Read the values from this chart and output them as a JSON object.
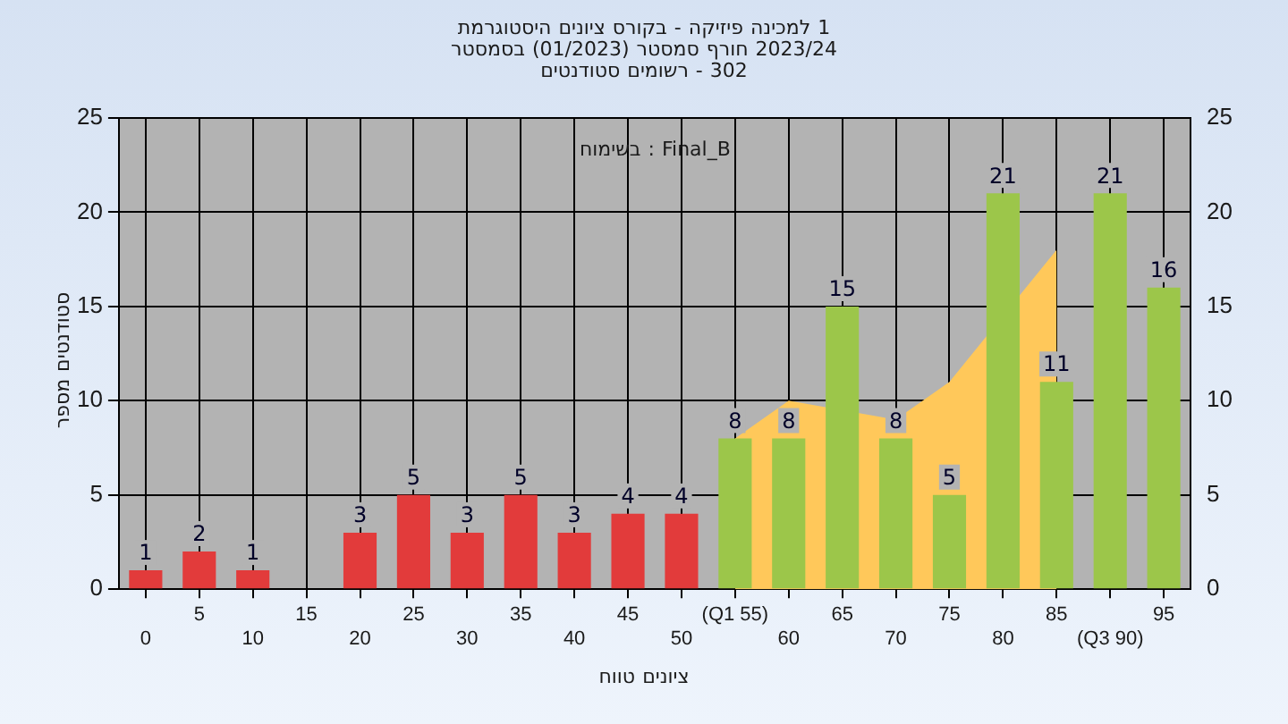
{
  "chart_data": {
    "type": "bar",
    "title": "היסטוגרמת ציונים בקורס - פיזיקה למכינה 1",
    "subtitle": "בסמסטר (01/2023) סמסטר חורף 2023/24\nסטודנטים רשומים - 302",
    "xlabel": "טווח ציונים",
    "ylabel": "מספר סטודנטים",
    "annotations": [
      "בשימוח : Final_B"
    ],
    "categories": [
      "0",
      "5",
      "10",
      "15",
      "20",
      "25",
      "30",
      "35",
      "40",
      "45",
      "50",
      "(Q1 55)",
      "60",
      "65",
      "70",
      "75",
      "80",
      "85",
      "(Q3 90)",
      "95"
    ],
    "series": [
      {
        "colors": [
          "#e23b3b",
          "#e23b3b",
          "#e23b3b",
          "#e23b3b",
          "#e23b3b",
          "#e23b3b",
          "#e23b3b",
          "#e23b3b",
          "#e23b3b",
          "#e23b3b",
          "#e23b3b",
          "#9cc64a",
          "#9cc64a",
          "#9cc64a",
          "#9cc64a",
          "#9cc64a",
          "#9cc64a",
          "#9cc64a",
          "#9cc64a",
          "#9cc64a"
        ],
        "values": [
          1,
          2,
          1,
          0,
          3,
          5,
          3,
          5,
          3,
          4,
          4,
          8,
          8,
          15,
          8,
          5,
          21,
          11,
          21,
          16
        ],
        "value_labels": [
          "1",
          "2",
          "1",
          null,
          "3",
          "5",
          "3",
          "5",
          "3",
          "4",
          "4",
          "8",
          "8",
          "15",
          "8",
          "5",
          "21",
          "11",
          "21",
          "16"
        ]
      },
      {
        "type": "area",
        "color": "#ffc85a",
        "values": [
          null,
          null,
          null,
          null,
          null,
          null,
          null,
          null,
          null,
          null,
          null,
          8,
          10,
          null,
          9,
          11,
          null,
          18,
          null,
          null
        ]
      }
    ],
    "ylim": [
      0,
      25
    ],
    "yticks": [
      0,
      5,
      10,
      15,
      20,
      25
    ],
    "y2lim": [
      0,
      25
    ],
    "y2ticks": [
      0,
      5,
      10,
      15,
      20,
      25
    ],
    "grid": true,
    "legend": false
  }
}
